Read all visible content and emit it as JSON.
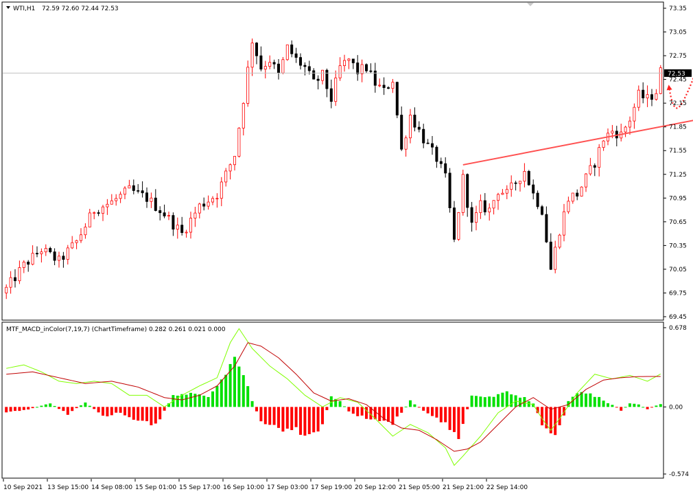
{
  "main_header": {
    "symbol": "WTI,H1",
    "ohlc": "72.59 72.60 72.44 72.53"
  },
  "macd_header": {
    "label": "MTF_MACD_inColor(7,19,7) (ChartTimeframe) 0.282 0.261 0.021 0.000"
  },
  "colors": {
    "bull": "#ff0000",
    "bear": "#000000",
    "trendline": "#ff5050",
    "arrow": "#ff2020",
    "macd_pos": "#00e000",
    "macd_neg": "#ff0000",
    "signal_main": "#80ff00",
    "signal_slow": "#c00000"
  },
  "chart_data": [
    {
      "type": "candlestick",
      "symbol": "WTI",
      "timeframe": "H1",
      "ylim": [
        69.45,
        73.35
      ],
      "y_ticks": [
        "73.35",
        "73.05",
        "72.75",
        "72.45",
        "72.15",
        "71.85",
        "71.55",
        "71.25",
        "70.95",
        "70.65",
        "70.35",
        "70.05",
        "69.75",
        "69.45"
      ],
      "current_price": "72.53",
      "x_ticks": [
        "10 Sep 2021",
        "13 Sep 15:00",
        "14 Sep 08:00",
        "15 Sep 01:00",
        "15 Sep 17:00",
        "16 Sep 10:00",
        "17 Sep 03:00",
        "17 Sep 19:00",
        "20 Sep 12:00",
        "21 Sep 05:00",
        "21 Sep 21:00",
        "22 Sep 14:00"
      ],
      "close_path": [
        [
          0,
          69.8
        ],
        [
          4,
          70.1
        ],
        [
          8,
          70.3
        ],
        [
          12,
          70.15
        ],
        [
          16,
          70.4
        ],
        [
          20,
          70.8
        ],
        [
          24,
          70.9
        ],
        [
          28,
          71.05
        ],
        [
          32,
          70.95
        ],
        [
          36,
          70.75
        ],
        [
          40,
          70.5
        ],
        [
          44,
          70.85
        ],
        [
          48,
          71.0
        ],
        [
          52,
          71.5
        ],
        [
          54,
          72.2
        ],
        [
          56,
          72.95
        ],
        [
          58,
          72.6
        ],
        [
          60,
          72.7
        ],
        [
          62,
          72.5
        ],
        [
          64,
          72.85
        ],
        [
          66,
          72.7
        ],
        [
          68,
          72.6
        ],
        [
          70,
          72.4
        ],
        [
          72,
          72.5
        ],
        [
          74,
          72.2
        ],
        [
          76,
          72.6
        ],
        [
          78,
          72.7
        ],
        [
          80,
          72.55
        ],
        [
          82,
          72.6
        ],
        [
          84,
          72.4
        ],
        [
          86,
          72.3
        ],
        [
          88,
          72.45
        ],
        [
          90,
          71.55
        ],
        [
          92,
          72.0
        ],
        [
          94,
          71.8
        ],
        [
          96,
          71.6
        ],
        [
          98,
          71.45
        ],
        [
          100,
          71.2
        ],
        [
          102,
          70.4
        ],
        [
          104,
          71.2
        ],
        [
          106,
          70.6
        ],
        [
          108,
          70.85
        ],
        [
          110,
          70.8
        ],
        [
          112,
          71.05
        ],
        [
          114,
          71.0
        ],
        [
          116,
          71.15
        ],
        [
          118,
          71.3
        ],
        [
          120,
          71.0
        ],
        [
          122,
          70.8
        ],
        [
          124,
          70.05
        ],
        [
          126,
          70.55
        ],
        [
          128,
          70.95
        ],
        [
          130,
          71.0
        ],
        [
          132,
          71.2
        ],
        [
          134,
          71.4
        ],
        [
          136,
          71.7
        ],
        [
          138,
          71.8
        ],
        [
          140,
          71.75
        ],
        [
          142,
          71.95
        ],
        [
          144,
          72.25
        ],
        [
          146,
          72.2
        ],
        [
          148,
          72.3
        ],
        [
          149,
          72.55
        ]
      ],
      "candle_count": 150,
      "series": [
        {
          "name": "WTI,H1",
          "values": "OHLC candles"
        }
      ],
      "trendline": {
        "from": [
          104,
          71.37
        ],
        "to": [
          175,
          72.13
        ]
      },
      "annotation": "dotted curved arrow: dip then rise"
    },
    {
      "type": "bar",
      "title": "MTF_MACD_inColor(7,19,7) (ChartTimeframe) 0.282 0.261 0.021 0.000",
      "ylim": [
        -0.574,
        0.678
      ],
      "y_ticks": [
        "0.678",
        "0.00",
        "-0.574"
      ],
      "histogram_path": [
        [
          0,
          -0.05
        ],
        [
          5,
          -0.02
        ],
        [
          10,
          0.03
        ],
        [
          14,
          -0.06
        ],
        [
          18,
          0.04
        ],
        [
          22,
          -0.08
        ],
        [
          26,
          -0.05
        ],
        [
          30,
          -0.12
        ],
        [
          34,
          -0.16
        ],
        [
          38,
          0.1
        ],
        [
          42,
          0.12
        ],
        [
          46,
          0.08
        ],
        [
          50,
          0.3
        ],
        [
          52,
          0.45
        ],
        [
          54,
          0.3
        ],
        [
          56,
          0.05
        ],
        [
          58,
          -0.12
        ],
        [
          62,
          -0.18
        ],
        [
          66,
          -0.2
        ],
        [
          70,
          -0.25
        ],
        [
          72,
          -0.15
        ],
        [
          74,
          0.1
        ],
        [
          76,
          0.05
        ],
        [
          78,
          -0.04
        ],
        [
          82,
          -0.1
        ],
        [
          86,
          -0.12
        ],
        [
          88,
          -0.14
        ],
        [
          92,
          0.05
        ],
        [
          96,
          -0.06
        ],
        [
          100,
          -0.15
        ],
        [
          103,
          -0.26
        ],
        [
          106,
          0.1
        ],
        [
          110,
          0.08
        ],
        [
          114,
          0.12
        ],
        [
          118,
          0.08
        ],
        [
          120,
          0.03
        ],
        [
          122,
          -0.14
        ],
        [
          124,
          -0.24
        ],
        [
          126,
          -0.18
        ],
        [
          128,
          0.05
        ],
        [
          130,
          0.12
        ],
        [
          134,
          0.1
        ],
        [
          136,
          0.05
        ],
        [
          138,
          0.02
        ],
        [
          140,
          -0.03
        ],
        [
          142,
          0.03
        ],
        [
          144,
          0.02
        ],
        [
          146,
          -0.02
        ],
        [
          148,
          0.01
        ],
        [
          149,
          0.021
        ]
      ],
      "line_main_path": [
        [
          0,
          0.33
        ],
        [
          4,
          0.36
        ],
        [
          8,
          0.3
        ],
        [
          12,
          0.22
        ],
        [
          16,
          0.2
        ],
        [
          20,
          0.22
        ],
        [
          24,
          0.2
        ],
        [
          28,
          0.1
        ],
        [
          32,
          0.1
        ],
        [
          36,
          0.0
        ],
        [
          40,
          0.1
        ],
        [
          44,
          0.18
        ],
        [
          48,
          0.25
        ],
        [
          51,
          0.55
        ],
        [
          53,
          0.67
        ],
        [
          56,
          0.5
        ],
        [
          60,
          0.35
        ],
        [
          64,
          0.24
        ],
        [
          68,
          0.1
        ],
        [
          72,
          0.0
        ],
        [
          76,
          0.08
        ],
        [
          80,
          0.04
        ],
        [
          84,
          -0.1
        ],
        [
          88,
          -0.25
        ],
        [
          92,
          -0.15
        ],
        [
          96,
          -0.22
        ],
        [
          100,
          -0.35
        ],
        [
          102,
          -0.5
        ],
        [
          104,
          -0.42
        ],
        [
          108,
          -0.25
        ],
        [
          112,
          -0.05
        ],
        [
          116,
          0.05
        ],
        [
          120,
          0.02
        ],
        [
          122,
          -0.1
        ],
        [
          124,
          -0.2
        ],
        [
          126,
          -0.1
        ],
        [
          130,
          0.12
        ],
        [
          134,
          0.28
        ],
        [
          138,
          0.24
        ],
        [
          142,
          0.27
        ],
        [
          146,
          0.22
        ],
        [
          149,
          0.282
        ]
      ],
      "line_signal_path": [
        [
          0,
          0.28
        ],
        [
          6,
          0.3
        ],
        [
          12,
          0.25
        ],
        [
          18,
          0.2
        ],
        [
          24,
          0.22
        ],
        [
          30,
          0.17
        ],
        [
          36,
          0.08
        ],
        [
          40,
          0.06
        ],
        [
          44,
          0.1
        ],
        [
          48,
          0.18
        ],
        [
          52,
          0.35
        ],
        [
          55,
          0.55
        ],
        [
          58,
          0.52
        ],
        [
          62,
          0.42
        ],
        [
          66,
          0.28
        ],
        [
          70,
          0.12
        ],
        [
          74,
          0.05
        ],
        [
          78,
          0.07
        ],
        [
          82,
          0.02
        ],
        [
          86,
          -0.1
        ],
        [
          90,
          -0.18
        ],
        [
          94,
          -0.2
        ],
        [
          98,
          -0.28
        ],
        [
          102,
          -0.38
        ],
        [
          105,
          -0.36
        ],
        [
          108,
          -0.3
        ],
        [
          112,
          -0.15
        ],
        [
          116,
          0.0
        ],
        [
          120,
          0.08
        ],
        [
          124,
          -0.02
        ],
        [
          128,
          0.02
        ],
        [
          132,
          0.15
        ],
        [
          136,
          0.23
        ],
        [
          140,
          0.25
        ],
        [
          144,
          0.26
        ],
        [
          149,
          0.261
        ]
      ]
    }
  ]
}
